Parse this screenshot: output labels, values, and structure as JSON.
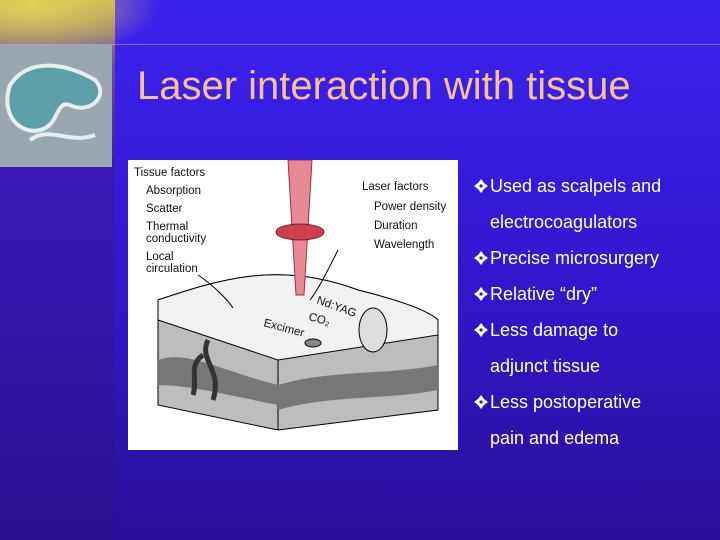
{
  "slide": {
    "title": "Laser interaction with tissue",
    "bullets": [
      [
        "Used as scalpels and",
        "electrocoagulators"
      ],
      [
        "Precise microsurgery"
      ],
      [
        "Relative “dry”"
      ],
      [
        "Less damage to",
        "adjunct tissue"
      ],
      [
        "Less postoperative",
        "pain and edema"
      ]
    ],
    "figure": {
      "tissue_factors": {
        "heading": "Tissue factors",
        "items": [
          "Absorption",
          "Scatter",
          "Thermal",
          "conductivity",
          "Local",
          "circulation"
        ]
      },
      "laser_factors": {
        "heading": "Laser factors",
        "items": [
          "Power density",
          "Duration",
          "Wavelength"
        ]
      },
      "lasers": [
        "Nd:YAG",
        "CO₂",
        "Excimer"
      ]
    }
  }
}
